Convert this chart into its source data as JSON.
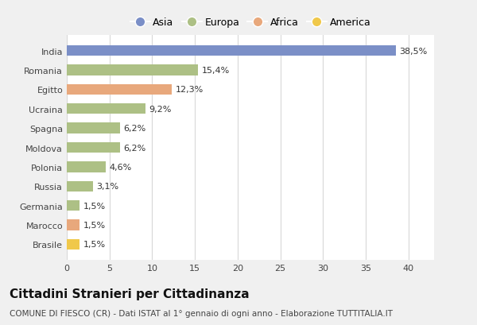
{
  "countries": [
    "India",
    "Romania",
    "Egitto",
    "Ucraina",
    "Spagna",
    "Moldova",
    "Polonia",
    "Russia",
    "Germania",
    "Marocco",
    "Brasile"
  ],
  "values": [
    38.5,
    15.4,
    12.3,
    9.2,
    6.2,
    6.2,
    4.6,
    3.1,
    1.5,
    1.5,
    1.5
  ],
  "labels": [
    "38,5%",
    "15,4%",
    "12,3%",
    "9,2%",
    "6,2%",
    "6,2%",
    "4,6%",
    "3,1%",
    "1,5%",
    "1,5%",
    "1,5%"
  ],
  "colors": [
    "#7b8fc7",
    "#adc085",
    "#e8a87c",
    "#adc085",
    "#adc085",
    "#adc085",
    "#adc085",
    "#adc085",
    "#adc085",
    "#e8a87c",
    "#f0c84a"
  ],
  "legend_labels": [
    "Asia",
    "Europa",
    "Africa",
    "America"
  ],
  "legend_colors": [
    "#7b8fc7",
    "#adc085",
    "#e8a87c",
    "#f0c84a"
  ],
  "title": "Cittadini Stranieri per Cittadinanza",
  "subtitle": "COMUNE DI FIESCO (CR) - Dati ISTAT al 1° gennaio di ogni anno - Elaborazione TUTTITALIA.IT",
  "xlim": [
    0,
    43
  ],
  "xticks": [
    0,
    5,
    10,
    15,
    20,
    25,
    30,
    35,
    40
  ],
  "background_color": "#f0f0f0",
  "plot_bg_color": "#ffffff",
  "grid_color": "#d8d8d8",
  "title_fontsize": 11,
  "subtitle_fontsize": 7.5,
  "label_fontsize": 8,
  "tick_fontsize": 8,
  "legend_fontsize": 9,
  "bar_height": 0.55
}
